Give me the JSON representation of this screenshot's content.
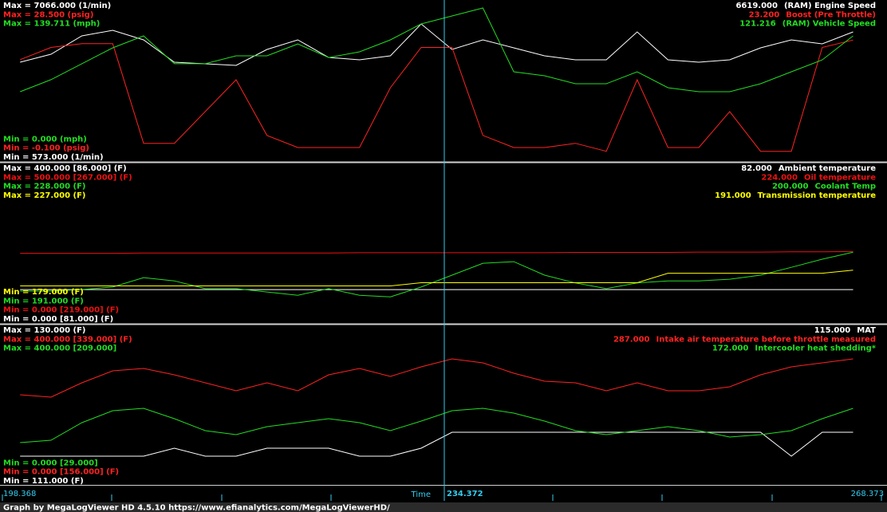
{
  "time_axis": {
    "start": 198.368,
    "cursor": 234.372,
    "end": 268.373,
    "label": "Time"
  },
  "footer": "Graph by MegaLogViewer HD 4.5.10 https://www.efianalytics.com/MegaLogViewerHD/",
  "sample_times": [
    200,
    202.5,
    205,
    207.5,
    210,
    212.5,
    215,
    217.5,
    220,
    222.5,
    225,
    227.5,
    230,
    232.5,
    235,
    237.5,
    240,
    242.5,
    245,
    247.5,
    250,
    252.5,
    255,
    257.5,
    260,
    262.5,
    265,
    267.5
  ],
  "panels": [
    {
      "traces": [
        {
          "name": "(RAM) Engine Speed",
          "color": "#ffffff",
          "current": "6619.000",
          "max_label": "Max = 7066.000 (1/min)",
          "min_label": "Min = 573.000 (1/min)",
          "scale": [
            573,
            7066
          ],
          "values": [
            4571,
            4913,
            5699,
            5938,
            5528,
            4571,
            4503,
            4434,
            5118,
            5528,
            4776,
            4673,
            4844,
            6211,
            5118,
            5528,
            5186,
            4844,
            4673,
            4673,
            5869,
            4673,
            4571,
            4673,
            5186,
            5528,
            5357,
            5869
          ]
        },
        {
          "name": "Boost (Pre Throttle)",
          "color": "#ff2222",
          "current": "23.200",
          "max_label": "Max = 28.500 (psig)",
          "min_label": "Min = -0.100 (psig)",
          "scale": [
            -0.1,
            28.5
          ],
          "values": [
            18.0,
            20.3,
            21.0,
            21.0,
            2.2,
            2.2,
            8.2,
            14.2,
            3.7,
            1.4,
            1.4,
            1.4,
            12.7,
            20.3,
            20.3,
            3.7,
            1.4,
            1.4,
            2.2,
            0.7,
            14.2,
            1.4,
            1.4,
            8.2,
            0.7,
            0.7,
            20.3,
            21.7
          ]
        },
        {
          "name": "(RAM) Vehicle Speed",
          "color": "#22dd22",
          "current": "121.216",
          "max_label": "Max = 139.711 (mph)",
          "min_label": "Min = 0.000 (mph)",
          "scale": [
            0,
            139.711
          ],
          "values": [
            58.8,
            69.9,
            84.6,
            99.3,
            110.3,
            84.6,
            84.6,
            91.9,
            91.9,
            102.9,
            90.4,
            95.6,
            106.6,
            121.3,
            128.7,
            136.0,
            77.2,
            73.5,
            66.2,
            66.2,
            77.2,
            62.5,
            58.8,
            58.8,
            66.2,
            77.2,
            88.2,
            110.3
          ]
        }
      ]
    },
    {
      "traces": [
        {
          "name": "Ambient temperature",
          "color": "#ffffff",
          "current": "82.000",
          "max_label": "Max = 400.000 [86.000] (F)",
          "min_label": "Min = 0.000 [81.000] (F)",
          "scale": [
            0,
            400
          ],
          "values": [
            82,
            82,
            82,
            82,
            82,
            82,
            82,
            82,
            82,
            82,
            82,
            82,
            82,
            82,
            82,
            82,
            82,
            82,
            82,
            82,
            82,
            82,
            82,
            82,
            82,
            82,
            82,
            82
          ]
        },
        {
          "name": "Oil temperature",
          "color": "#ee1111",
          "current": "224.000",
          "max_label": "Max = 500.000 [267.000] (F)",
          "min_label": "Min = 0.000 [219.000] (F)",
          "scale": [
            0,
            500
          ],
          "values": [
            222,
            222,
            222,
            222,
            223,
            223,
            223,
            223,
            223,
            223,
            223,
            224,
            224,
            224,
            224,
            224,
            224,
            224,
            225,
            225,
            225,
            225,
            226,
            226,
            226,
            227,
            227,
            228
          ]
        },
        {
          "name": "Coolant Temp",
          "color": "#22dd22",
          "current": "200.000",
          "max_label": "Max = 228.000 (F)",
          "min_label": "Min = 191.000 (F)",
          "scale": [
            191,
            228
          ],
          "values": [
            198.2,
            198.2,
            198.6,
            199.2,
            201.5,
            200.7,
            198.8,
            198.8,
            198.0,
            197.2,
            198.8,
            197.2,
            196.8,
            199.2,
            202.1,
            205.0,
            205.4,
            202.1,
            200.2,
            198.8,
            200.2,
            200.7,
            200.7,
            201.1,
            202.1,
            204.0,
            206.0,
            207.7
          ]
        },
        {
          "name": "Transmission temperature",
          "color": "#ffff00",
          "current": "191.000",
          "max_label": "Max = 227.000 (F)",
          "min_label": "Min = 179.000 (F)",
          "scale": [
            179,
            227
          ],
          "values": [
            190,
            190,
            190,
            190,
            190,
            190,
            190,
            190,
            190,
            190,
            190,
            190,
            190,
            191,
            191,
            191,
            191,
            191,
            191,
            191,
            191,
            194,
            194,
            194,
            194,
            194,
            194,
            195
          ]
        }
      ]
    },
    {
      "traces": [
        {
          "name": "MAT",
          "color": "#ffffff",
          "current": "115.000",
          "max_label": "Max = 130.000 (F)",
          "min_label": "Min = 111.000 (F)",
          "scale": [
            111,
            130
          ],
          "values": [
            114,
            114,
            114,
            114,
            114,
            115,
            114,
            114,
            115,
            115,
            115,
            114,
            114,
            115,
            117,
            117,
            117,
            117,
            117,
            117,
            117,
            117,
            117,
            117,
            117,
            114,
            117,
            117
          ]
        },
        {
          "name": "Intake air temperature before throttle measured",
          "color": "#ff2222",
          "current": "287.000",
          "max_label": "Max = 400.000 [339.000] (F)",
          "min_label": "Min = 0.000 [156.000] (F)",
          "scale": [
            0,
            400
          ],
          "values": [
            225.2,
            218.9,
            256.8,
            288.4,
            294.7,
            277.9,
            256.8,
            235.8,
            256.8,
            235.8,
            277.9,
            294.7,
            273.7,
            298.9,
            320.0,
            309.4,
            282.1,
            261.0,
            256.8,
            235.8,
            256.8,
            235.8,
            235.8,
            246.3,
            277.9,
            298.9,
            309.4,
            320.0
          ]
        },
        {
          "name": "Intercooler heat shedding*",
          "color": "#22dd22",
          "current": "172.000",
          "max_label": "Max = 400.000 [209.000]",
          "min_label": "Min = 0.000 [29.000]",
          "scale": [
            0,
            400
          ],
          "values": [
            98.9,
            105.3,
            151.6,
            183.1,
            189.5,
            162.1,
            130.5,
            120.0,
            141.0,
            151.6,
            162.1,
            151.6,
            130.5,
            155.8,
            183.1,
            189.5,
            176.8,
            155.8,
            130.5,
            120.0,
            130.5,
            141.0,
            130.5,
            113.7,
            120.0,
            130.5,
            162.1,
            189.5
          ]
        }
      ]
    }
  ]
}
